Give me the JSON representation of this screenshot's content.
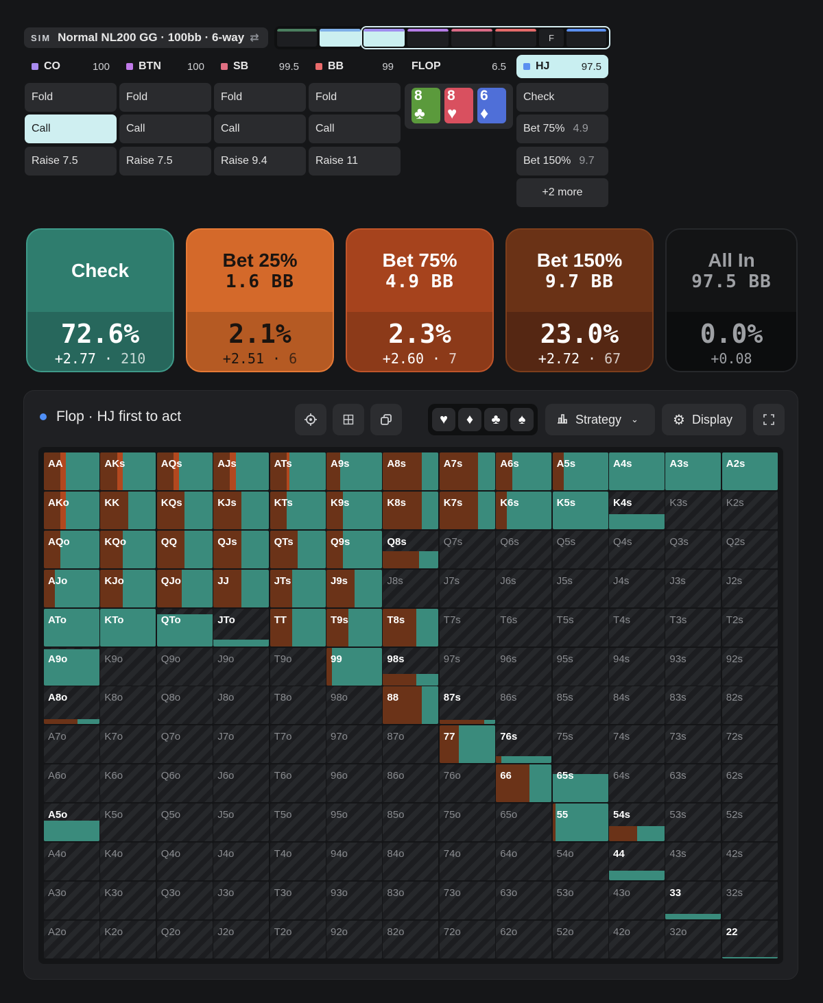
{
  "header": {
    "sim_tag": "SIM",
    "title": "Normal NL200 GG · 100bb · 6-way",
    "swap_icon": "swap-icon",
    "street_marker": "F"
  },
  "seats": [
    {
      "name": "CO",
      "stack": "100",
      "color": "#a98bf0"
    },
    {
      "name": "BTN",
      "stack": "100",
      "color": "#c07ae8"
    },
    {
      "name": "SB",
      "stack": "99.5",
      "color": "#e06f82"
    },
    {
      "name": "BB",
      "stack": "99",
      "color": "#ea6b6b"
    },
    {
      "name": "FLOP",
      "stack": "6.5",
      "color": ""
    },
    {
      "name": "HJ",
      "stack": "97.5",
      "color": "#5b8ff0"
    }
  ],
  "seat_actions": [
    [
      "Fold",
      "Call",
      "Raise 7.5"
    ],
    [
      "Fold",
      "Call",
      "Raise 7.5"
    ],
    [
      "Fold",
      "Call",
      "Raise 9.4"
    ],
    [
      "Fold",
      "Call",
      "Raise 11"
    ]
  ],
  "hj_actions": [
    {
      "label": "Check",
      "size": ""
    },
    {
      "label": "Bet 75%",
      "size": "4.9"
    },
    {
      "label": "Bet 150%",
      "size": "9.7"
    },
    {
      "label": "+2 more",
      "size": ""
    }
  ],
  "board": [
    {
      "rank": "8",
      "suit": "♣",
      "color": "#5b9a3c"
    },
    {
      "rank": "8",
      "suit": "♥",
      "color": "#d9505f"
    },
    {
      "rank": "6",
      "suit": "♦",
      "color": "#4f6fd8"
    }
  ],
  "strategy": [
    {
      "line1": "Check",
      "line2": "",
      "pct": "72.6%",
      "ev": "+2.77",
      "count": "210",
      "top": "#2f7d6e",
      "bot": "#27675c",
      "border": "#3f9a89",
      "text": "#ffffff"
    },
    {
      "line1": "Bet 25%",
      "line2": "1.6 BB",
      "pct": "2.1%",
      "ev": "+2.51",
      "count": "6",
      "top": "#d4692a",
      "bot": "#b55a23",
      "border": "#e57a36",
      "text": "#1a1410"
    },
    {
      "line1": "Bet 75%",
      "line2": "4.9 BB",
      "pct": "2.3%",
      "ev": "+2.60",
      "count": "7",
      "top": "#a6431d",
      "bot": "#8c3a19",
      "border": "#c0552a",
      "text": "#ffffff"
    },
    {
      "line1": "Bet 150%",
      "line2": "9.7 BB",
      "pct": "23.0%",
      "ev": "+2.72",
      "count": "67",
      "top": "#6a3216",
      "bot": "#552713",
      "border": "#7d3e1c",
      "text": "#ffffff"
    },
    {
      "line1": "All In",
      "line2": "97.5 BB",
      "pct": "0.0%",
      "ev": "+0.08",
      "count": "",
      "top": "#131415",
      "bot": "#0c0d0e",
      "border": "#26282b",
      "text": "#9ea0a4"
    }
  ],
  "panel": {
    "title": "Flop · HJ first to act",
    "strategy_label": "Strategy",
    "display_label": "Display"
  },
  "suits": [
    "♥",
    "♦",
    "♣",
    "♠"
  ],
  "colors": {
    "check": "#3a8b7c",
    "bet25": "#e0702d",
    "bet75": "#b2481f",
    "bet150": "#6b3318"
  },
  "grid": [
    [
      [
        "AA",
        "c:60,a:30,b:10"
      ],
      [
        "AKs",
        "c:60,a:30,b:10"
      ],
      [
        "AQs",
        "c:60,a:30,b:10"
      ],
      [
        "AJs",
        "c:60,a:30,b:10"
      ],
      [
        "ATs",
        "c:65,a:30,b:5"
      ],
      [
        "A9s",
        "c:75,a:25"
      ],
      [
        "A8s",
        "c:30,a:70"
      ],
      [
        "A7s",
        "c:30,a:70"
      ],
      [
        "A6s",
        "c:70,a:30"
      ],
      [
        "A5s",
        "c:80,a:20"
      ],
      [
        "A4s",
        "c:100"
      ],
      [
        "A3s",
        "c:100"
      ],
      [
        "A2s",
        "c:100"
      ]
    ],
    [
      [
        "AKo",
        "c:60,a:30,b:10"
      ],
      [
        "KK",
        "c:50,a:50"
      ],
      [
        "KQs",
        "c:50,a:50"
      ],
      [
        "KJs",
        "c:50,a:50"
      ],
      [
        "KTs",
        "c:70,a:30"
      ],
      [
        "K9s",
        "c:70,a:30"
      ],
      [
        "K8s",
        "c:30,a:70"
      ],
      [
        "K7s",
        "c:30,a:70"
      ],
      [
        "K6s",
        "c:80,a:20"
      ],
      [
        "K5s",
        "c:100"
      ],
      [
        "K4s",
        "h40,c:100"
      ],
      [
        "K3s",
        ""
      ],
      [
        "K2s",
        ""
      ]
    ],
    [
      [
        "AQo",
        "c:70,a:30"
      ],
      [
        "KQo",
        "c:60,a:40"
      ],
      [
        "QQ",
        "c:50,a:50"
      ],
      [
        "QJs",
        "c:50,a:50"
      ],
      [
        "QTs",
        "c:50,a:50"
      ],
      [
        "Q9s",
        "c:70,a:30"
      ],
      [
        "Q8s",
        "h45,c:35,a:65"
      ],
      [
        "Q7s",
        ""
      ],
      [
        "Q6s",
        ""
      ],
      [
        "Q5s",
        ""
      ],
      [
        "Q4s",
        ""
      ],
      [
        "Q3s",
        ""
      ],
      [
        "Q2s",
        ""
      ]
    ],
    [
      [
        "AJo",
        "c:80,a:20"
      ],
      [
        "KJo",
        "c:60,a:40"
      ],
      [
        "QJo",
        "c:55,a:45"
      ],
      [
        "JJ",
        "c:50,a:50"
      ],
      [
        "JTs",
        "c:60,a:40"
      ],
      [
        "J9s",
        "c:50,a:50"
      ],
      [
        "J8s",
        ""
      ],
      [
        "J7s",
        ""
      ],
      [
        "J6s",
        ""
      ],
      [
        "J5s",
        ""
      ],
      [
        "J4s",
        ""
      ],
      [
        "J3s",
        ""
      ],
      [
        "J2s",
        ""
      ]
    ],
    [
      [
        "ATo",
        "c:100"
      ],
      [
        "KTo",
        "c:100"
      ],
      [
        "QTo",
        "h85,c:100"
      ],
      [
        "JTo",
        "h18,c:100"
      ],
      [
        "TT",
        "c:60,a:40"
      ],
      [
        "T9s",
        "c:60,a:40"
      ],
      [
        "T8s",
        "c:40,a:60"
      ],
      [
        "T7s",
        ""
      ],
      [
        "T6s",
        ""
      ],
      [
        "T5s",
        ""
      ],
      [
        "T4s",
        ""
      ],
      [
        "T3s",
        ""
      ],
      [
        "T2s",
        ""
      ]
    ],
    [
      [
        "A9o",
        "h95,c:100"
      ],
      [
        "K9o",
        ""
      ],
      [
        "Q9o",
        ""
      ],
      [
        "J9o",
        ""
      ],
      [
        "T9o",
        ""
      ],
      [
        "99",
        "c:90,a:10"
      ],
      [
        "98s",
        "h30,c:40,a:60"
      ],
      [
        "97s",
        ""
      ],
      [
        "96s",
        ""
      ],
      [
        "95s",
        ""
      ],
      [
        "94s",
        ""
      ],
      [
        "93s",
        ""
      ],
      [
        "92s",
        ""
      ]
    ],
    [
      [
        "A8o",
        "h14,c:40,a:60"
      ],
      [
        "K8o",
        ""
      ],
      [
        "Q8o",
        ""
      ],
      [
        "J8o",
        ""
      ],
      [
        "T8o",
        ""
      ],
      [
        "98o",
        ""
      ],
      [
        "88",
        "c:30,a:70"
      ],
      [
        "87s",
        "h12,c:20,a:80"
      ],
      [
        "86s",
        ""
      ],
      [
        "85s",
        ""
      ],
      [
        "84s",
        ""
      ],
      [
        "83s",
        ""
      ],
      [
        "82s",
        ""
      ]
    ],
    [
      [
        "A7o",
        ""
      ],
      [
        "K7o",
        ""
      ],
      [
        "Q7o",
        ""
      ],
      [
        "J7o",
        ""
      ],
      [
        "T7o",
        ""
      ],
      [
        "97o",
        ""
      ],
      [
        "87o",
        ""
      ],
      [
        "77",
        "c:65,a:35"
      ],
      [
        "76s",
        "h18,c:90,a:10"
      ],
      [
        "75s",
        ""
      ],
      [
        "74s",
        ""
      ],
      [
        "73s",
        ""
      ],
      [
        "72s",
        ""
      ]
    ],
    [
      [
        "A6o",
        ""
      ],
      [
        "K6o",
        ""
      ],
      [
        "Q6o",
        ""
      ],
      [
        "J6o",
        ""
      ],
      [
        "T6o",
        ""
      ],
      [
        "96o",
        ""
      ],
      [
        "86o",
        ""
      ],
      [
        "76o",
        ""
      ],
      [
        "66",
        "c:40,a:60"
      ],
      [
        "65s",
        "h75,c:100"
      ],
      [
        "64s",
        ""
      ],
      [
        "63s",
        ""
      ],
      [
        "62s",
        ""
      ]
    ],
    [
      [
        "A5o",
        "h55,c:100"
      ],
      [
        "K5o",
        ""
      ],
      [
        "Q5o",
        ""
      ],
      [
        "J5o",
        ""
      ],
      [
        "T5o",
        ""
      ],
      [
        "95o",
        ""
      ],
      [
        "85o",
        ""
      ],
      [
        "75o",
        ""
      ],
      [
        "65o",
        ""
      ],
      [
        "55",
        "c:95,a:5"
      ],
      [
        "54s",
        "h40,c:50,a:50"
      ],
      [
        "53s",
        ""
      ],
      [
        "52s",
        ""
      ]
    ],
    [
      [
        "A4o",
        ""
      ],
      [
        "K4o",
        ""
      ],
      [
        "Q4o",
        ""
      ],
      [
        "J4o",
        ""
      ],
      [
        "T4o",
        ""
      ],
      [
        "94o",
        ""
      ],
      [
        "84o",
        ""
      ],
      [
        "74o",
        ""
      ],
      [
        "64o",
        ""
      ],
      [
        "54o",
        ""
      ],
      [
        "44",
        "h25,c:100"
      ],
      [
        "43s",
        ""
      ],
      [
        "42s",
        ""
      ]
    ],
    [
      [
        "A3o",
        ""
      ],
      [
        "K3o",
        ""
      ],
      [
        "Q3o",
        ""
      ],
      [
        "J3o",
        ""
      ],
      [
        "T3o",
        ""
      ],
      [
        "93o",
        ""
      ],
      [
        "83o",
        ""
      ],
      [
        "73o",
        ""
      ],
      [
        "63o",
        ""
      ],
      [
        "53o",
        ""
      ],
      [
        "43o",
        ""
      ],
      [
        "33",
        "h14,c:100"
      ],
      [
        "32s",
        ""
      ]
    ],
    [
      [
        "A2o",
        ""
      ],
      [
        "K2o",
        ""
      ],
      [
        "Q2o",
        ""
      ],
      [
        "J2o",
        ""
      ],
      [
        "T2o",
        ""
      ],
      [
        "92o",
        ""
      ],
      [
        "82o",
        ""
      ],
      [
        "72o",
        ""
      ],
      [
        "62o",
        ""
      ],
      [
        "52o",
        ""
      ],
      [
        "42o",
        ""
      ],
      [
        "32o",
        ""
      ],
      [
        "22",
        "h4,c:100"
      ]
    ]
  ]
}
